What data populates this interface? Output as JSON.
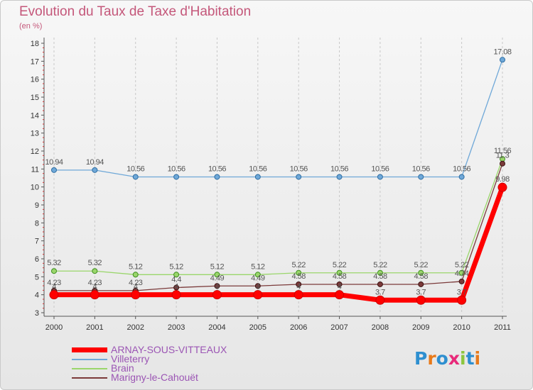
{
  "header": {
    "title": "Evolution du Taux de Taxe d'Habitation",
    "subtitle": "(en %)"
  },
  "logo": {
    "text": "Proxiti",
    "letter_colors": [
      "#2e8fd0",
      "#e87a1a",
      "#2e8fd0",
      "#e82a7a",
      "#8cc63f",
      "#2e8fd0",
      "#e87a1a"
    ]
  },
  "chart_data": {
    "type": "line",
    "categories": [
      "2000",
      "2001",
      "2002",
      "2003",
      "2004",
      "2005",
      "2006",
      "2007",
      "2008",
      "2009",
      "2010",
      "2011"
    ],
    "ylim": [
      3,
      18
    ],
    "y_ticks": [
      "3",
      "4",
      "5",
      "6",
      "7",
      "8",
      "9",
      "10",
      "11",
      "12",
      "13",
      "14",
      "15",
      "16",
      "17",
      "18"
    ],
    "grid": "vertical dashed",
    "legend": "bottom-left",
    "series": [
      {
        "name": "ARNAY-SOUS-VITTEAUX",
        "color": "#ff0000",
        "values": [
          4,
          4,
          4,
          4,
          4,
          4,
          4,
          4,
          3.7,
          3.7,
          3.7,
          9.98
        ],
        "labels": [
          "4",
          "4",
          "4",
          "4",
          "4",
          "4",
          "4",
          "4",
          "3.7",
          "3.7",
          "3.7",
          "9.98"
        ]
      },
      {
        "name": "Villeterry",
        "color": "#6fa8d8",
        "values": [
          10.94,
          10.94,
          10.56,
          10.56,
          10.56,
          10.56,
          10.56,
          10.56,
          10.56,
          10.56,
          10.56,
          17.08
        ],
        "labels": [
          "10.94",
          "10.94",
          "10.56",
          "10.56",
          "10.56",
          "10.56",
          "10.56",
          "10.56",
          "10.56",
          "10.56",
          "10.56",
          "17.08"
        ]
      },
      {
        "name": "Brain",
        "color": "#9ad66b",
        "values": [
          5.32,
          5.32,
          5.12,
          5.12,
          5.12,
          5.12,
          5.22,
          5.22,
          5.22,
          5.22,
          5.22,
          11.56
        ],
        "labels": [
          "5.32",
          "5.32",
          "5.12",
          "5.12",
          "5.12",
          "5.12",
          "5.22",
          "5.22",
          "5.22",
          "5.22",
          "5.22",
          "11.56"
        ]
      },
      {
        "name": "Marigny-le-Cahouët",
        "color": "#7b3a3a",
        "values": [
          4.23,
          4.23,
          4.23,
          4.4,
          4.49,
          4.49,
          4.58,
          4.58,
          4.58,
          4.58,
          4.74,
          11.3
        ],
        "labels": [
          "4.23",
          "4.23",
          "4.23",
          "4.4",
          "4.49",
          "4.49",
          "4.58",
          "4.58",
          "4.58",
          "4.58",
          "4.74",
          "11.3"
        ]
      }
    ]
  }
}
